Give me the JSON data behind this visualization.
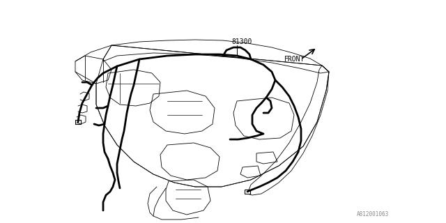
{
  "bg_color": "#ffffff",
  "line_color": "#000000",
  "thin_color": "#000000",
  "label_81300": "81300",
  "label_front": "FRONT",
  "label_code": "A812001063",
  "fig_width": 6.4,
  "fig_height": 3.2,
  "dpi": 100
}
